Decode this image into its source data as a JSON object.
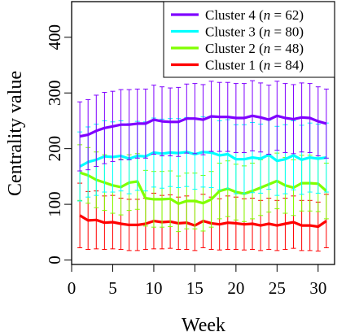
{
  "chart_data": {
    "type": "line",
    "xlabel": "Week",
    "ylabel": "Centrality value",
    "xlim": [
      0,
      32
    ],
    "ylim": [
      -8,
      464
    ],
    "x_ticks": [
      0,
      5,
      10,
      15,
      20,
      25,
      30
    ],
    "y_ticks": [
      0,
      100,
      200,
      300,
      400
    ],
    "x_tick_labels": [
      "0",
      "5",
      "10",
      "15",
      "20",
      "25",
      "30"
    ],
    "y_tick_labels": [
      "0",
      "100",
      "200",
      "300",
      "400"
    ],
    "grid": false,
    "legend_position": "top-right",
    "x": [
      1,
      2,
      3,
      4,
      5,
      6,
      7,
      8,
      9,
      10,
      11,
      12,
      13,
      14,
      15,
      16,
      17,
      18,
      19,
      20,
      21,
      22,
      23,
      24,
      25,
      26,
      27,
      28,
      29,
      30,
      31
    ],
    "series": [
      {
        "label": "Cluster 4",
        "n": "62",
        "color": "#7f00ff",
        "values": [
          222,
          225,
          232,
          237,
          240,
          243,
          243,
          245,
          245,
          252,
          249,
          248,
          248,
          254,
          254,
          252,
          258,
          257,
          257,
          255,
          255,
          259,
          256,
          252,
          259,
          255,
          253,
          256,
          255,
          249,
          245
        ],
        "error": [
          62,
          63,
          64,
          64,
          63,
          63,
          63,
          62,
          62,
          62,
          62,
          61,
          62,
          62,
          63,
          63,
          63,
          62,
          62,
          62,
          62,
          63,
          62,
          62,
          62,
          62,
          62,
          62,
          62,
          62,
          62
        ]
      },
      {
        "label": "Cluster 3",
        "n": "80",
        "color": "#00ffff",
        "values": [
          168,
          176,
          180,
          186,
          185,
          187,
          182,
          187,
          186,
          193,
          191,
          193,
          192,
          194,
          190,
          194,
          193,
          188,
          190,
          181,
          181,
          184,
          182,
          189,
          178,
          181,
          188,
          180,
          184,
          182,
          184
        ],
        "error": [
          62,
          63,
          64,
          64,
          63,
          63,
          63,
          62,
          62,
          62,
          62,
          61,
          62,
          62,
          63,
          63,
          63,
          62,
          62,
          62,
          62,
          63,
          62,
          62,
          62,
          62,
          62,
          62,
          62,
          62,
          62
        ]
      },
      {
        "label": "Cluster 2",
        "n": "48",
        "color": "#80ff00",
        "values": [
          157,
          152,
          144,
          139,
          134,
          131,
          139,
          141,
          111,
          109,
          109,
          110,
          101,
          106,
          106,
          102,
          109,
          124,
          128,
          122,
          119,
          124,
          130,
          136,
          142,
          134,
          130,
          138,
          138,
          137,
          124
        ],
        "error": [
          50,
          50,
          50,
          50,
          50,
          50,
          50,
          50,
          50,
          50,
          50,
          50,
          50,
          50,
          50,
          50,
          50,
          50,
          50,
          50,
          50,
          50,
          50,
          50,
          50,
          50,
          50,
          50,
          50,
          50,
          50
        ]
      },
      {
        "label": "Cluster 1",
        "n": "84",
        "color": "#ff0000",
        "values": [
          80,
          71,
          72,
          67,
          68,
          65,
          63,
          63,
          65,
          70,
          68,
          69,
          66,
          67,
          62,
          70,
          66,
          64,
          67,
          66,
          64,
          65,
          62,
          65,
          62,
          65,
          68,
          62,
          62,
          60,
          70
        ],
        "error": [
          58,
          52,
          52,
          48,
          48,
          46,
          46,
          46,
          46,
          50,
          48,
          48,
          47,
          48,
          45,
          48,
          47,
          46,
          48,
          47,
          46,
          46,
          45,
          46,
          45,
          46,
          47,
          45,
          45,
          44,
          48
        ]
      }
    ]
  }
}
